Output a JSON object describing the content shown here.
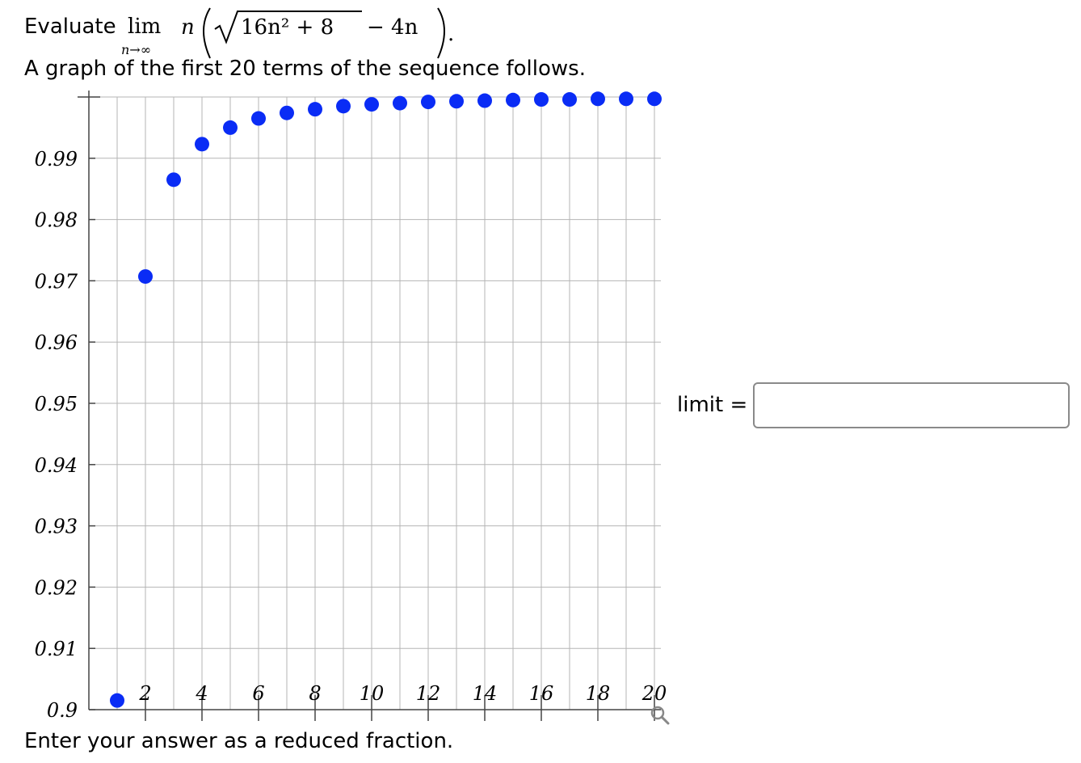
{
  "problem": {
    "evaluate_label": "Evaluate",
    "lim_text": "lim",
    "lim_subscript": "n→∞",
    "expr_n": "n",
    "expr_radicand": "16n² + 8",
    "expr_rest": "− 4n",
    "period": "."
  },
  "graph_caption": "A graph of the first 20 terms of the sequence follows.",
  "chart_data": {
    "type": "scatter",
    "title": "",
    "xlabel": "",
    "ylabel": "",
    "x": [
      1,
      2,
      3,
      4,
      5,
      6,
      7,
      8,
      9,
      10,
      11,
      12,
      13,
      14,
      15,
      16,
      17,
      18,
      19,
      20
    ],
    "y": [
      0.9015,
      0.9707,
      0.9865,
      0.9923,
      0.995,
      0.9965,
      0.9974,
      0.998,
      0.9985,
      0.9988,
      0.999,
      0.9992,
      0.9993,
      0.9994,
      0.9995,
      0.9996,
      0.9996,
      0.9997,
      0.9997,
      0.9997
    ],
    "xlim": [
      0.5,
      20.2
    ],
    "ylim": [
      0.9,
      1.0
    ],
    "x_ticks": [
      2,
      4,
      6,
      8,
      10,
      12,
      14,
      16,
      18,
      20
    ],
    "y_ticks": [
      0.9,
      0.91,
      0.92,
      0.93,
      0.94,
      0.95,
      0.96,
      0.97,
      0.98,
      0.99
    ],
    "y_tick_labels": [
      "0.9",
      "0.91",
      "0.92",
      "0.93",
      "0.94",
      "0.95",
      "0.96",
      "0.97",
      "0.98",
      "0.99"
    ],
    "grid": true,
    "point_color": "#0a2cf5"
  },
  "zoom_icon": "magnifier-icon",
  "answer": {
    "label": "limit =",
    "value": "",
    "placeholder": ""
  },
  "footer": "Enter your answer as a reduced fraction."
}
